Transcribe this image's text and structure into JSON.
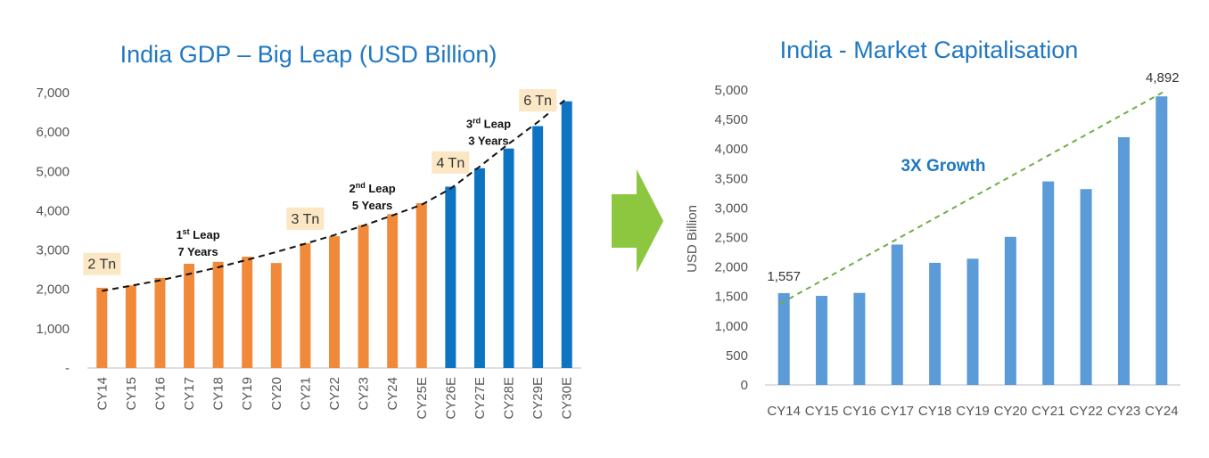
{
  "colors": {
    "title": "#1f78c1",
    "actual_bar": "#f08a3a",
    "estimate_bar": "#0e74c2",
    "market_bar": "#5b9bd8",
    "growth_line": "#70ad47",
    "arrow": "#8dc63f",
    "tn_box": "#fbe7c4",
    "axis": "#bfbfbf",
    "trend": "#111111"
  },
  "icons": {
    "divider_arrow": "arrow-right-icon"
  },
  "chart_data": [
    {
      "type": "bar",
      "title": "India GDP – Big Leap (USD Billion)",
      "xlabel": "",
      "ylabel": "",
      "ylim": [
        0,
        7000
      ],
      "yticks": [
        0,
        1000,
        2000,
        3000,
        4000,
        5000,
        6000,
        7000
      ],
      "ytick_labels": [
        "-",
        "1,000",
        "2,000",
        "3,000",
        "4,000",
        "5,000",
        "6,000",
        "7,000"
      ],
      "categories": [
        "CY14",
        "CY15",
        "CY16",
        "CY17",
        "CY18",
        "CY19",
        "CY20",
        "CY21",
        "CY22",
        "CY23",
        "CY24",
        "CY25E",
        "CY26E",
        "CY27E",
        "CY28E",
        "CY29E",
        "CY30E"
      ],
      "values": [
        2040,
        2100,
        2290,
        2650,
        2700,
        2830,
        2670,
        3170,
        3350,
        3630,
        3910,
        4190,
        4610,
        5080,
        5580,
        6150,
        6780
      ],
      "series_kind": [
        "actual",
        "actual",
        "actual",
        "actual",
        "actual",
        "actual",
        "actual",
        "actual",
        "actual",
        "actual",
        "actual",
        "actual",
        "estimate",
        "estimate",
        "estimate",
        "estimate",
        "estimate"
      ],
      "trend_line": [
        1960,
        2090,
        2230,
        2390,
        2560,
        2750,
        2950,
        3160,
        3380,
        3620,
        3880,
        4150,
        4560,
        5120,
        5700,
        6250,
        6850
      ],
      "markers": [
        {
          "label": "2 Tn",
          "category": "CY14",
          "value": 2000
        },
        {
          "label": "3 Tn",
          "category": "CY21",
          "value": 3150
        },
        {
          "label": "4 Tn",
          "category": "CY26E",
          "value": 4580
        },
        {
          "label": "6 Tn",
          "category": "CY29E",
          "value": 6160
        }
      ],
      "leaps": [
        {
          "line1": "1",
          "sup": "st",
          "line1_rest": " Leap",
          "line2": "7 Years",
          "category": "CY17",
          "value": 3100
        },
        {
          "line1": "2",
          "sup": "nd",
          "line1_rest": " Leap",
          "line2": "5 Years",
          "category": "CY23",
          "value": 4280
        },
        {
          "line1": "3",
          "sup": "rd",
          "line1_rest": " Leap",
          "line2": "3 Years",
          "category": "CY27E",
          "value": 5920
        }
      ]
    },
    {
      "type": "bar",
      "title": "India - Market Capitalisation",
      "xlabel": "",
      "ylabel": "USD Billion",
      "ylim": [
        0,
        5000
      ],
      "yticks": [
        0,
        500,
        1000,
        1500,
        2000,
        2500,
        3000,
        3500,
        4000,
        4500,
        5000
      ],
      "ytick_labels": [
        "0",
        "500",
        "1,000",
        "1,500",
        "2,000",
        "2,500",
        "3,000",
        "3,500",
        "4,000",
        "4,500",
        "5,000"
      ],
      "categories": [
        "CY14",
        "CY15",
        "CY16",
        "CY17",
        "CY18",
        "CY19",
        "CY20",
        "CY21",
        "CY22",
        "CY23",
        "CY24"
      ],
      "values": [
        1557,
        1510,
        1560,
        2380,
        2070,
        2140,
        2510,
        3450,
        3320,
        4200,
        4892
      ],
      "data_labels": [
        {
          "category": "CY14",
          "text": "1,557"
        },
        {
          "category": "CY24",
          "text": "4,892"
        }
      ],
      "growth_line": {
        "from": {
          "category": "CY14",
          "value": 1500
        },
        "to": {
          "category": "CY24",
          "value": 4892
        }
      },
      "annotation": "3X Growth"
    }
  ]
}
